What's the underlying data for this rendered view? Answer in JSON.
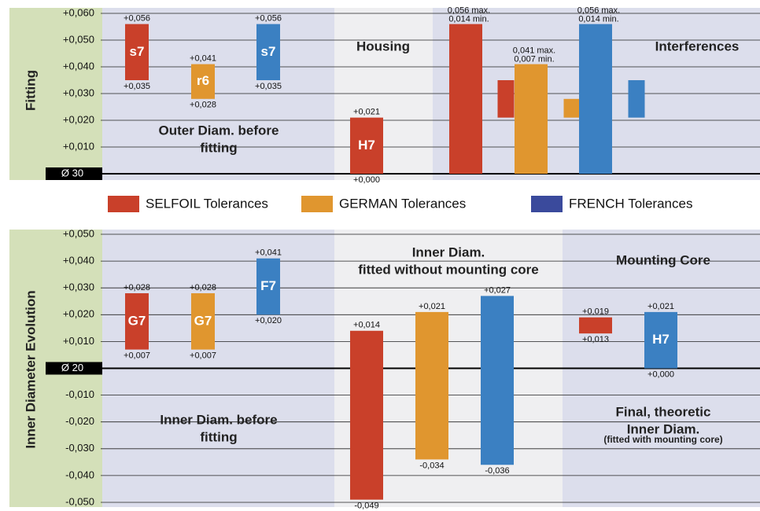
{
  "chart_data": [
    {
      "type": "floating-bar",
      "y_label": "Fitting",
      "ylim": [
        0,
        0.06
      ],
      "yticks": [
        {
          "value": 0,
          "label": "Ø 30"
        },
        {
          "value": 0.01,
          "label": "+0,010"
        },
        {
          "value": 0.02,
          "label": "+0,020"
        },
        {
          "value": 0.03,
          "label": "+0,030"
        },
        {
          "value": 0.04,
          "label": "+0,040"
        },
        {
          "value": 0.05,
          "label": "+0,050"
        },
        {
          "value": 0.06,
          "label": "+0,060"
        }
      ],
      "series": [
        {
          "name": "SELFOIL Tolerances",
          "color": "#c9402a"
        },
        {
          "name": "GERMAN Tolerances",
          "color": "#e0962f"
        },
        {
          "name": "FRENCH Tolerances",
          "color": "#3b80c2"
        }
      ],
      "labels": [
        {
          "lines": [
            "Outer Diam. before",
            "fitting"
          ]
        },
        {
          "lines": [
            "Housing"
          ]
        },
        {
          "lines": [
            "Interferences"
          ]
        }
      ],
      "bars": [
        {
          "name": "s7",
          "series": 0,
          "low": 0.035,
          "high": 0.056,
          "value_labels": {
            "low": "+0,035",
            "high": "+0,056"
          }
        },
        {
          "name": "r6",
          "series": 1,
          "low": 0.028,
          "high": 0.041,
          "value_labels": {
            "low": "+0,028",
            "high": "+0,041"
          }
        },
        {
          "name": "s7",
          "series": 2,
          "low": 0.035,
          "high": 0.056,
          "value_labels": {
            "low": "+0,035",
            "high": "+0,056"
          }
        },
        {
          "name": "H7",
          "series": 0,
          "low": 0,
          "high": 0.021,
          "value_labels": {
            "low": "+0,000",
            "high": "+0,021"
          }
        },
        {
          "series": 0,
          "low": 0,
          "high": 0.056,
          "range": {
            "max": 0.056,
            "min": 0.014
          },
          "value_labels": {
            "max": "0,056 max.",
            "min": "0,014 min."
          }
        },
        {
          "series": 0,
          "low": 0.021,
          "high": 0.035
        },
        {
          "series": 1,
          "low": 0,
          "high": 0.041,
          "range": {
            "max": 0.041,
            "min": 0.007
          },
          "value_labels": {
            "max": "0,041 max.",
            "min": "0,007 min."
          }
        },
        {
          "series": 1,
          "low": 0.021,
          "high": 0.028
        },
        {
          "series": 2,
          "low": 0,
          "high": 0.056,
          "range": {
            "max": 0.056,
            "min": 0.014
          },
          "value_labels": {
            "max": "0,056 max.",
            "min": "0,014 min."
          }
        },
        {
          "series": 2,
          "low": 0.021,
          "high": 0.035
        }
      ]
    },
    {
      "type": "floating-bar",
      "y_label": "Inner Diameter Evolution",
      "ylim": [
        -0.05,
        0.05
      ],
      "yticks": [
        {
          "value": -0.05,
          "label": "-0,050"
        },
        {
          "value": -0.04,
          "label": "-0,040"
        },
        {
          "value": -0.03,
          "label": "-0,030"
        },
        {
          "value": -0.02,
          "label": "-0,020"
        },
        {
          "value": -0.01,
          "label": "-0,010"
        },
        {
          "value": 0,
          "label": "Ø 20"
        },
        {
          "value": 0.01,
          "label": "+0,010"
        },
        {
          "value": 0.02,
          "label": "+0,020"
        },
        {
          "value": 0.03,
          "label": "+0,030"
        },
        {
          "value": 0.04,
          "label": "+0,040"
        },
        {
          "value": 0.05,
          "label": "+0,050"
        }
      ],
      "labels": [
        {
          "lines": [
            "Inner Diam. before",
            "fitting"
          ]
        },
        {
          "lines": [
            "Inner Diam.",
            "fitted without mounting core"
          ]
        },
        {
          "lines": [
            "Mounting Core"
          ]
        },
        {
          "lines": [
            "Final, theoretic",
            "Inner Diam.",
            "(fitted with mounting core)"
          ]
        }
      ],
      "bars": [
        {
          "name": "G7",
          "series": 0,
          "low": 0.007,
          "high": 0.028,
          "value_labels": {
            "low": "+0,007",
            "high": "+0,028"
          }
        },
        {
          "name": "G7",
          "series": 1,
          "low": 0.007,
          "high": 0.028,
          "value_labels": {
            "low": "+0,007",
            "high": "+0,028"
          }
        },
        {
          "name": "F7",
          "series": 2,
          "low": 0.02,
          "high": 0.041,
          "value_labels": {
            "low": "+0,020",
            "high": "+0,041"
          }
        },
        {
          "series": 0,
          "low": -0.049,
          "high": 0.014,
          "value_labels": {
            "low": "-0,049",
            "high": "+0,014"
          }
        },
        {
          "series": 1,
          "low": -0.034,
          "high": 0.021,
          "value_labels": {
            "low": "-0,034",
            "high": "+0,021"
          }
        },
        {
          "series": 2,
          "low": -0.036,
          "high": 0.027,
          "value_labels": {
            "low": "-0,036",
            "high": "+0,027"
          }
        },
        {
          "series": 0,
          "low": 0.013,
          "high": 0.019,
          "value_labels": {
            "low": "+0,013",
            "high": "+0,019"
          }
        },
        {
          "name": "H7",
          "series": 2,
          "low": 0,
          "high": 0.021,
          "value_labels": {
            "low": "+0,000",
            "high": "+0,021"
          }
        }
      ]
    }
  ]
}
